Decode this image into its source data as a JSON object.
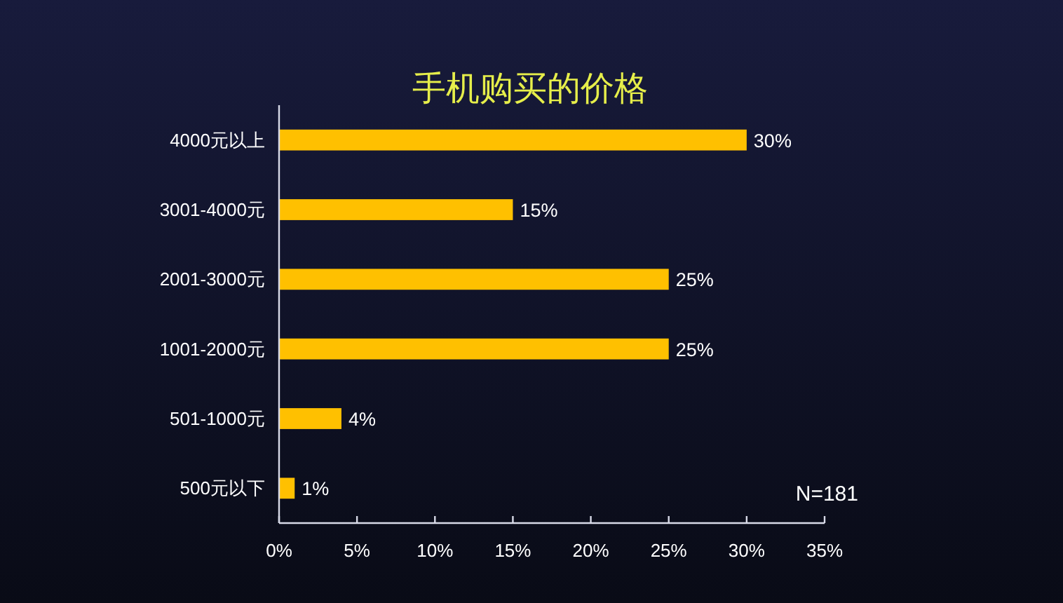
{
  "chart_data": {
    "type": "bar",
    "orientation": "horizontal",
    "title": "手机购买的价格",
    "categories": [
      "4000元以上",
      "3001-4000元",
      "2001-3000元",
      "1001-2000元",
      "501-1000元",
      "500元以下"
    ],
    "values": [
      30,
      15,
      25,
      25,
      4,
      1
    ],
    "value_labels": [
      "30%",
      "15%",
      "25%",
      "25%",
      "4%",
      "1%"
    ],
    "color": "#ffc000",
    "xlim": [
      0,
      35
    ],
    "xticks": [
      {
        "value": 0,
        "label": "0%"
      },
      {
        "value": 5,
        "label": "5%"
      },
      {
        "value": 10,
        "label": "10%"
      },
      {
        "value": 15,
        "label": "15%"
      },
      {
        "value": 20,
        "label": "20%"
      },
      {
        "value": 25,
        "label": "25%"
      },
      {
        "value": 30,
        "label": "30%"
      },
      {
        "value": 35,
        "label": "35%"
      }
    ],
    "annotations": [
      "N=181"
    ]
  }
}
